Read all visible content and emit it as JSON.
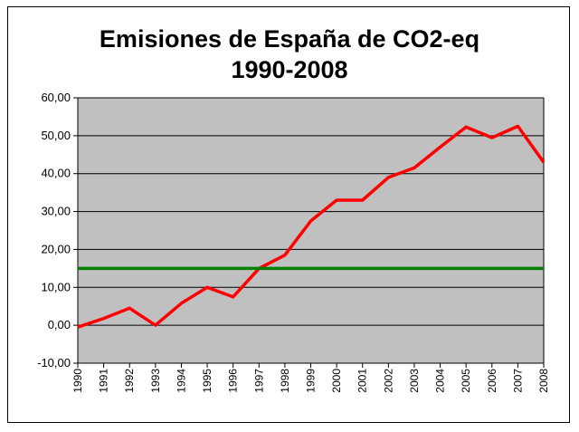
{
  "chart_data": {
    "type": "line",
    "title_line1": "Emisiones de España de CO2-eq",
    "title_line2": "1990-2008",
    "xlabel": "",
    "ylabel": "",
    "ylim": [
      -10,
      60
    ],
    "y_ticks": [
      "-10,00",
      "0,00",
      "10,00",
      "20,00",
      "30,00",
      "40,00",
      "50,00",
      "60,00"
    ],
    "x": [
      "1990",
      "1991",
      "1992",
      "1993",
      "1994",
      "1995",
      "1996",
      "1997",
      "1998",
      "1999",
      "2000",
      "2001",
      "2002",
      "2003",
      "2004",
      "2005",
      "2006",
      "2007",
      "2008"
    ],
    "grid": true,
    "plot_background": "#c0c0c0",
    "series": [
      {
        "color": "#ff0000",
        "values": [
          -0.5,
          1.8,
          4.5,
          0.0,
          5.8,
          10.0,
          7.5,
          15.0,
          18.5,
          27.5,
          33.0,
          33.0,
          39.0,
          41.5,
          47.0,
          52.3,
          49.5,
          52.5,
          43.0
        ]
      },
      {
        "color": "#008000",
        "values": [
          15,
          15,
          15,
          15,
          15,
          15,
          15,
          15,
          15,
          15,
          15,
          15,
          15,
          15,
          15,
          15,
          15,
          15,
          15
        ]
      }
    ]
  }
}
